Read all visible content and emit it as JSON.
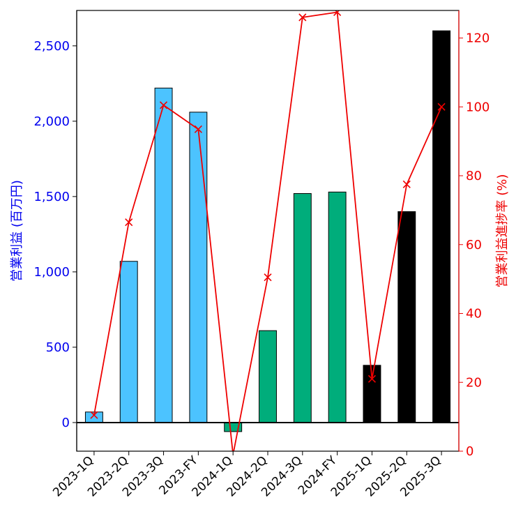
{
  "chart_data": {
    "type": "bar",
    "categories": [
      "2023-1Q",
      "2023-2Q",
      "2023-3Q",
      "2023-FY",
      "2024-1Q",
      "2024-2Q",
      "2024-3Q",
      "2024-FY",
      "2025-1Q",
      "2025-2Q",
      "2025-3Q"
    ],
    "series": [
      {
        "type": "bar",
        "axis": "left",
        "values": [
          70,
          1070,
          2220,
          2060,
          -60,
          610,
          1520,
          1530,
          380,
          1400,
          2600
        ],
        "colors": [
          "#4cc3ff",
          "#4cc3ff",
          "#4cc3ff",
          "#4cc3ff",
          "#00ad7b",
          "#00ad7b",
          "#00ad7b",
          "#00ad7b",
          "#000000",
          "#000000",
          "#000000"
        ]
      },
      {
        "type": "line",
        "axis": "right",
        "marker": "x",
        "color": "#ee0000",
        "values": [
          10.5,
          66.5,
          100.5,
          93.5,
          -1.0,
          50.5,
          126.0,
          127.5,
          21.0,
          77.5,
          100.0
        ]
      }
    ],
    "ylabel": "営業利益 (百万円)",
    "y2label": "営業利益進捗率 (%)",
    "ylim": [
      -190,
      2735
    ],
    "y2lim": [
      0,
      128
    ],
    "yticks": [
      "0",
      "500",
      "1,000",
      "1,500",
      "2,000",
      "2,500"
    ],
    "y2ticks": [
      "0",
      "20",
      "40",
      "60",
      "80",
      "100",
      "120"
    ],
    "left_axis_color": "#0000ee",
    "right_axis_color": "#ee0000",
    "grid": false,
    "zero_line": true
  }
}
